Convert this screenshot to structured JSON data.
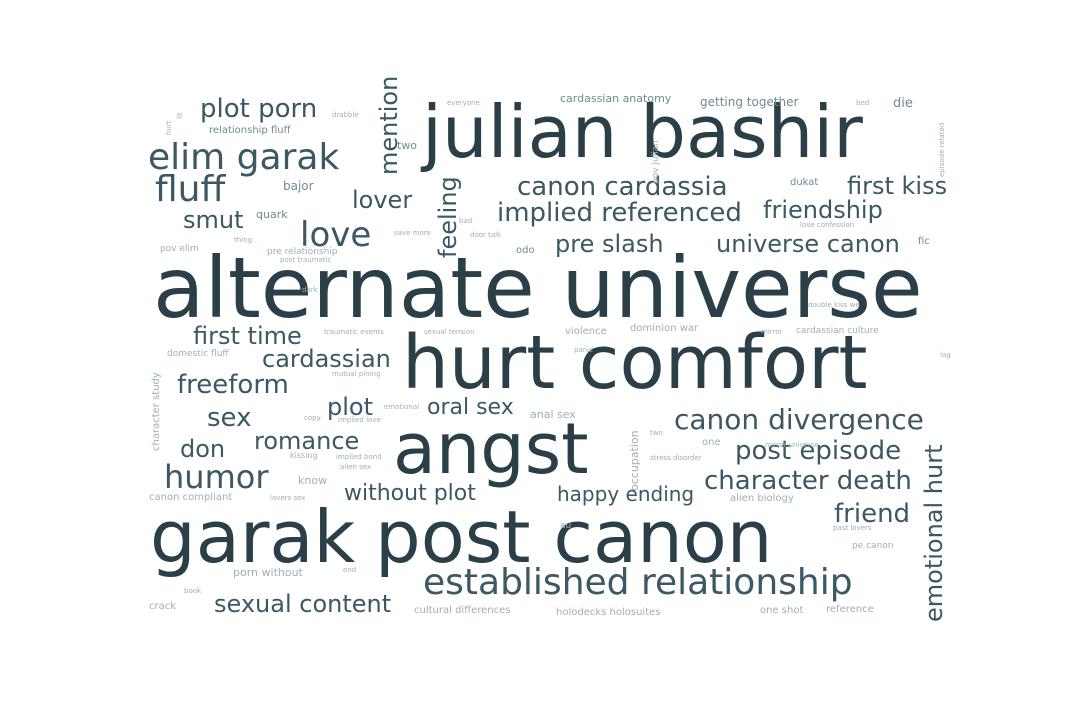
{
  "words": {
    "alternate_universe": "alternate universe",
    "hurt_comfort": "hurt comfort",
    "angst": "angst",
    "garak": "garak",
    "post_canon": "post canon",
    "julian_bashir": "julian bashir",
    "established_relationship": "established relationship",
    "elim_garak": "elim garak",
    "fluff": "fluff",
    "love": "love",
    "plot_porn": "plot porn",
    "canon_cardassia": "canon cardassia",
    "implied_referenced": "implied referenced",
    "friendship": "friendship",
    "first_kiss": "first kiss",
    "lover": "lover",
    "smut": "smut",
    "mention": "mention",
    "feeling": "feeling",
    "pre_slash": "pre slash",
    "universe_canon": "universe canon",
    "first_time": "first time",
    "cardassian": "cardassian",
    "freeform": "freeform",
    "sex": "sex",
    "plot": "plot",
    "oral_sex": "oral sex",
    "canon_divergence": "canon divergence",
    "don": "don",
    "romance": "romance",
    "post_episode": "post episode",
    "humor": "humor",
    "character_death": "character death",
    "without_plot": "without plot",
    "happy_ending": "happy ending",
    "friend": "friend",
    "emotional_hurt": "emotional hurt",
    "sexual_content": "sexual content",
    "bajor": "bajor",
    "quark": "quark",
    "two": "two",
    "relationship_fluff": "relationship fluff",
    "cardassian_anatomy": "cardassian anatomy",
    "getting_together": "getting together",
    "die": "die",
    "dukat": "dukat",
    "odo": "odo",
    "fic": "fic",
    "pov_elim": "pov elim",
    "pre_relationship": "pre relationship",
    "pov_julian": "pov julian",
    "violence": "violence",
    "dominion_war": "dominion war",
    "cardassian_culture": "cardassian culture",
    "character_study": "character study",
    "domestic_fluff": "domestic fluff",
    "anal_sex": "anal sex",
    "occupation": "occupation",
    "one": "one",
    "know": "know",
    "canon_compliant": "canon compliant",
    "alien_biology": "alien biology",
    "au": "au",
    "pe_canon": "pe canon",
    "porn_without": "porn without",
    "crack": "crack",
    "cultural_differences": "cultural differences",
    "holodeck_holosuites": "holodecks holosuites",
    "one_shot": "one shot",
    "reference": "reference",
    "kissing": "kissing",
    "drabble": "drabble",
    "everyone": "everyone",
    "episode_related": "episode related",
    "bad": "bad",
    "door_talk": "door talk",
    "traumatic_events": "traumatic events",
    "sexual_tension": "sexual tension",
    "lag": "lag",
    "tiny_lit": "lit",
    "tiny_hurt": "hurt",
    "tiny_thing": "thing",
    "tiny_love_confession": "love confession",
    "tiny_mutual_pining": "mutual pining",
    "tiny_implied_love": "implied love",
    "tiny_alien_sex": "alien sex",
    "tiny_dark": "dark",
    "tiny_post_traumatic": "post traumatic",
    "tiny_implied_bond": "implied bond",
    "tiny_lovers_sex": "lovers sex",
    "tiny_past_lovers": "past lovers",
    "tiny_silence_disorder": "stress disorder",
    "tiny_end": "end",
    "tiny_book": "book",
    "tiny_lovers_we": "double kiss we",
    "tiny_mirror": "mirror",
    "tiny_mirror_universe": "mirror universe",
    "tiny_bed": "bed",
    "tiny_copy": "copy",
    "tiny_save": "save more",
    "tiny_emotional": "emotional",
    "tiny_panic": "panic",
    "tiny_two_r": "two"
  }
}
